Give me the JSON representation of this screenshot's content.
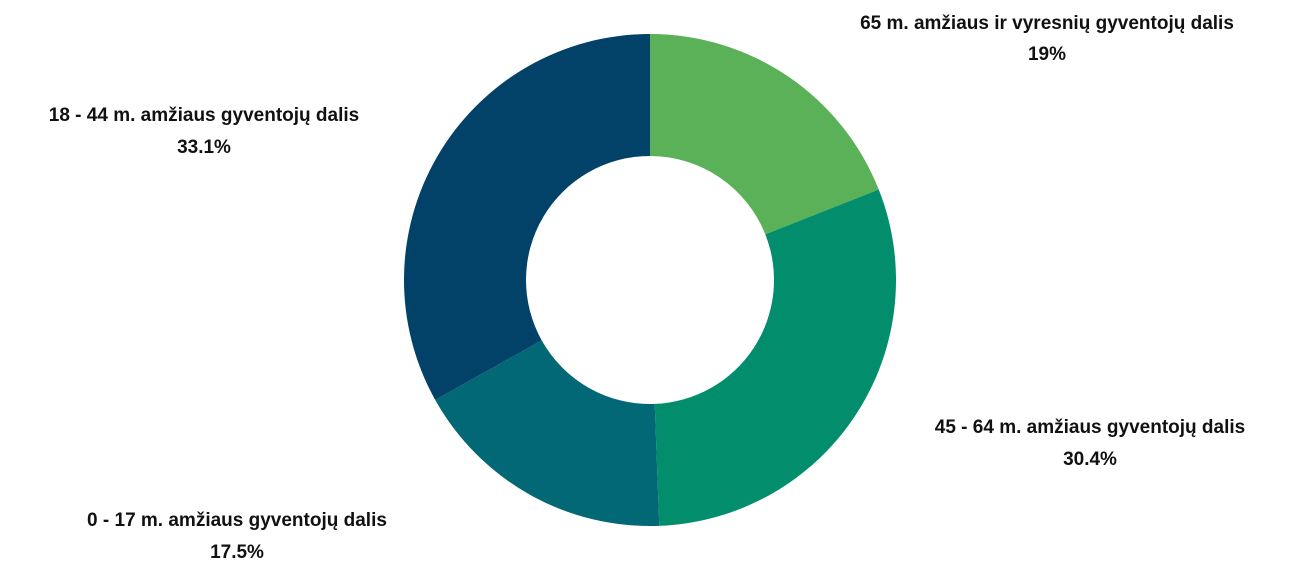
{
  "chart_data": {
    "type": "pie",
    "variant": "donut",
    "start_angle_deg": 0,
    "direction": "clockwise",
    "slices": [
      {
        "label": "65 m. amžiaus ir vyresnių gyventojų dalis",
        "value": 19,
        "value_label": "19%",
        "color": "#5bb158"
      },
      {
        "label": "45 - 64 m. amžiaus gyventojų dalis",
        "value": 30.4,
        "value_label": "30.4%",
        "color": "#028d6d"
      },
      {
        "label": "0 - 17 m. amžiaus gyventojų dalis",
        "value": 17.5,
        "value_label": "17.5%",
        "color": "#026875"
      },
      {
        "label": "18 - 44 m. amžiaus gyventojų dalis",
        "value": 33.1,
        "value_label": "33.1%",
        "color": "#024168"
      }
    ]
  }
}
